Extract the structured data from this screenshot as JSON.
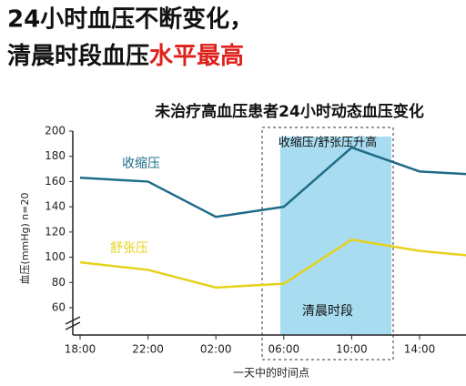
{
  "headline": {
    "line1": "24小时血压不断变化，",
    "line2": "清晨时段血压",
    "line2_highlight": "水平最高"
  },
  "chart_data": {
    "type": "line",
    "title": "未治疗高血压患者24小时动态血压变化",
    "y_label": "血压(mmHg) n=20",
    "x_label": "一天中的时间点",
    "categories": [
      "18:00",
      "22:00",
      "02:00",
      "06:00",
      "10:00",
      "14:00",
      null
    ],
    "series": [
      {
        "name": "收缩压",
        "color": "#1f6c88",
        "values": [
          163,
          160,
          132,
          140,
          187,
          168,
          165
        ]
      },
      {
        "name": "舒张压",
        "color": "#e6d21c",
        "values": [
          96,
          90,
          76,
          79,
          114,
          105,
          100
        ]
      }
    ],
    "ylim": [
      60,
      200
    ],
    "yticks": [
      60,
      80,
      100,
      120,
      140,
      160,
      180,
      200
    ],
    "annotations": [
      "收缩压/舒张压升高",
      "清晨时段"
    ]
  }
}
